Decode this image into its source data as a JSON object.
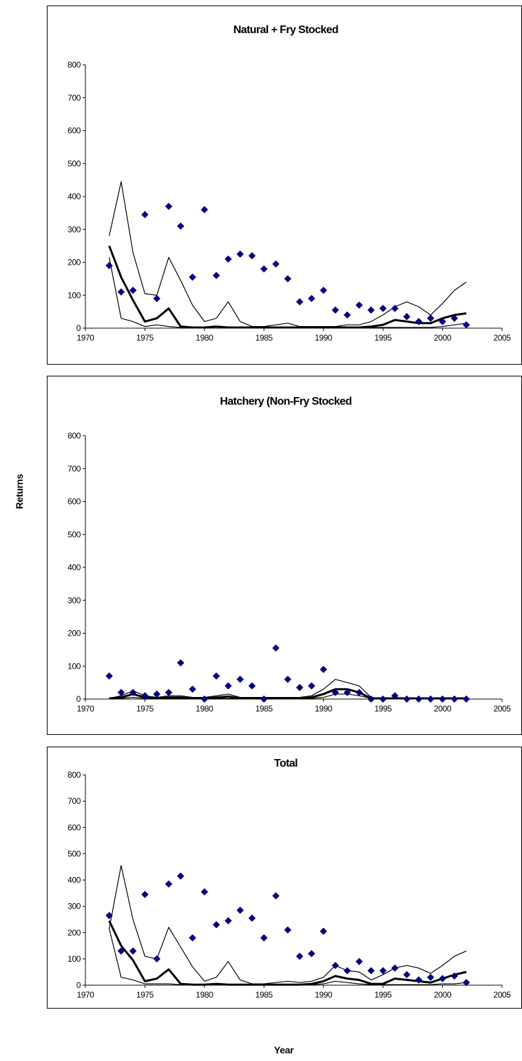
{
  "figure": {
    "ylabel": "Returns",
    "xlabel": "Year"
  },
  "colors": {
    "marker": "#000080",
    "line": "#000000",
    "frame": "#000000"
  },
  "chart_data": [
    {
      "type": "line",
      "title": "Natural + Fry Stocked",
      "xlim": [
        1970,
        2005
      ],
      "ylim": [
        0,
        800
      ],
      "xticks": [
        1970,
        1975,
        1980,
        1985,
        1990,
        1995,
        2000,
        2005
      ],
      "yticks": [
        0,
        100,
        200,
        300,
        400,
        500,
        600,
        700,
        800
      ],
      "x": [
        1972,
        1973,
        1974,
        1975,
        1976,
        1977,
        1978,
        1979,
        1980,
        1981,
        1982,
        1983,
        1984,
        1985,
        1986,
        1987,
        1988,
        1989,
        1990,
        1991,
        1992,
        1993,
        1994,
        1995,
        1996,
        1997,
        1998,
        1999,
        2000,
        2001,
        2002
      ],
      "observed": [
        190,
        110,
        115,
        345,
        90,
        370,
        310,
        155,
        360,
        160,
        210,
        225,
        220,
        180,
        195,
        150,
        80,
        90,
        115,
        55,
        40,
        70,
        55,
        60,
        60,
        35,
        20,
        30,
        20,
        30,
        10
      ],
      "series": [
        {
          "role": "upper",
          "values": [
            280,
            445,
            230,
            105,
            100,
            215,
            145,
            70,
            20,
            30,
            80,
            20,
            5,
            5,
            10,
            15,
            5,
            5,
            5,
            5,
            10,
            10,
            20,
            40,
            65,
            80,
            65,
            40,
            75,
            115,
            140
          ]
        },
        {
          "role": "median",
          "values": [
            250,
            155,
            85,
            20,
            30,
            60,
            5,
            2,
            2,
            5,
            2,
            2,
            2,
            2,
            2,
            2,
            2,
            2,
            2,
            2,
            2,
            2,
            5,
            10,
            25,
            20,
            15,
            15,
            30,
            40,
            45
          ]
        },
        {
          "role": "lower",
          "values": [
            215,
            30,
            20,
            5,
            10,
            5,
            2,
            2,
            2,
            5,
            2,
            2,
            2,
            2,
            2,
            2,
            2,
            2,
            2,
            2,
            2,
            2,
            2,
            2,
            2,
            2,
            2,
            2,
            5,
            10,
            15
          ]
        }
      ]
    },
    {
      "type": "line",
      "title": "Hatchery (Non-Fry Stocked",
      "xlim": [
        1970,
        2005
      ],
      "ylim": [
        0,
        800
      ],
      "xticks": [
        1970,
        1975,
        1980,
        1985,
        1990,
        1995,
        2000,
        2005
      ],
      "yticks": [
        0,
        100,
        200,
        300,
        400,
        500,
        600,
        700,
        800
      ],
      "x": [
        1972,
        1973,
        1974,
        1975,
        1976,
        1977,
        1978,
        1979,
        1980,
        1981,
        1982,
        1983,
        1984,
        1985,
        1986,
        1987,
        1988,
        1989,
        1990,
        1991,
        1992,
        1993,
        1994,
        1995,
        1996,
        1997,
        1998,
        1999,
        2000,
        2001,
        2002
      ],
      "observed": [
        70,
        20,
        20,
        10,
        15,
        20,
        110,
        30,
        0,
        70,
        40,
        60,
        40,
        0,
        155,
        60,
        35,
        40,
        90,
        20,
        20,
        20,
        0,
        0,
        10,
        0,
        0,
        0,
        0,
        0,
        0
      ],
      "series": [
        {
          "role": "upper",
          "values": [
            2,
            10,
            25,
            10,
            5,
            10,
            10,
            5,
            5,
            10,
            15,
            5,
            5,
            5,
            5,
            5,
            5,
            10,
            30,
            60,
            50,
            40,
            5,
            2,
            2,
            2,
            2,
            2,
            2,
            2,
            2
          ]
        },
        {
          "role": "median",
          "values": [
            2,
            5,
            15,
            5,
            2,
            5,
            5,
            2,
            2,
            5,
            8,
            2,
            2,
            2,
            2,
            2,
            2,
            5,
            15,
            30,
            30,
            20,
            2,
            2,
            2,
            2,
            2,
            2,
            2,
            2,
            2
          ]
        },
        {
          "role": "lower",
          "values": [
            2,
            2,
            5,
            2,
            2,
            2,
            2,
            2,
            2,
            2,
            2,
            2,
            2,
            2,
            2,
            2,
            2,
            2,
            5,
            15,
            15,
            10,
            2,
            2,
            2,
            2,
            2,
            2,
            2,
            2,
            2
          ]
        }
      ]
    },
    {
      "type": "line",
      "title": "Total",
      "xlim": [
        1970,
        2005
      ],
      "ylim": [
        0,
        800
      ],
      "xticks": [
        1970,
        1975,
        1980,
        1985,
        1990,
        1995,
        2000,
        2005
      ],
      "yticks": [
        0,
        100,
        200,
        300,
        400,
        500,
        600,
        700,
        800
      ],
      "x": [
        1972,
        1973,
        1974,
        1975,
        1976,
        1977,
        1978,
        1979,
        1980,
        1981,
        1982,
        1983,
        1984,
        1985,
        1986,
        1987,
        1988,
        1989,
        1990,
        1991,
        1992,
        1993,
        1994,
        1995,
        1996,
        1997,
        1998,
        1999,
        2000,
        2001,
        2002
      ],
      "observed": [
        265,
        130,
        130,
        345,
        100,
        385,
        415,
        180,
        355,
        230,
        245,
        285,
        255,
        180,
        340,
        210,
        110,
        120,
        205,
        75,
        55,
        90,
        55,
        55,
        65,
        40,
        20,
        30,
        25,
        35,
        10
      ],
      "series": [
        {
          "role": "upper",
          "values": [
            215,
            455,
            250,
            110,
            100,
            220,
            145,
            70,
            15,
            30,
            90,
            20,
            5,
            5,
            10,
            15,
            10,
            15,
            30,
            75,
            55,
            50,
            20,
            40,
            65,
            75,
            65,
            45,
            75,
            110,
            130
          ]
        },
        {
          "role": "median",
          "values": [
            245,
            150,
            95,
            15,
            25,
            60,
            5,
            2,
            2,
            5,
            2,
            2,
            2,
            2,
            2,
            2,
            2,
            5,
            15,
            35,
            25,
            20,
            5,
            5,
            25,
            20,
            15,
            10,
            25,
            40,
            50
          ]
        },
        {
          "role": "lower",
          "values": [
            215,
            30,
            20,
            5,
            5,
            5,
            2,
            2,
            2,
            5,
            2,
            2,
            2,
            2,
            2,
            2,
            2,
            2,
            5,
            15,
            10,
            5,
            2,
            2,
            2,
            2,
            2,
            2,
            5,
            5,
            10
          ]
        }
      ]
    }
  ]
}
